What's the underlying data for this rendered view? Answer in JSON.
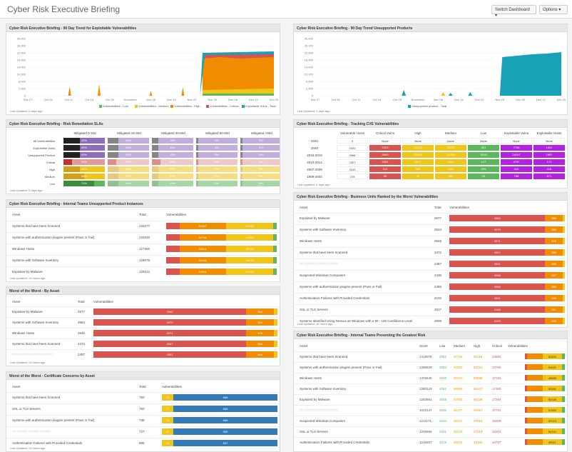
{
  "header": {
    "title": "Cyber Risk Executive Briefing",
    "switch_label": "Switch Dashboard ▾",
    "options_label": "Options ▾"
  },
  "footer_text": "Last Updated: 2 days ago",
  "footer_text_19h": "Last Updated: 19 hours ago",
  "p1": {
    "title": "Cyber Risk Executive Briefing - 90 Day Trend for Exploitable Vulnerabilities",
    "yticks": [
      "30,000",
      "26,000",
      "22,000",
      "18,000",
      "14,000",
      "10,000",
      "6,000",
      "2,000",
      "0"
    ],
    "xticks": [
      "Sep 27",
      "Oct 04",
      "Oct 11",
      "Oct 18",
      "Oct 25",
      "November",
      "Nov 08",
      "Nov 15",
      "Nov 22",
      "Nov 29",
      "Dec 06",
      "Dec 13",
      "Dec 20"
    ],
    "legend": [
      "Vulnerabilities - Low",
      "Vulnerabilities - Medium",
      "Vulnerabilities - High",
      "Vulnerabilities - Critical",
      "Exploitable Vulns - Total"
    ],
    "colors": [
      "#5cb85c",
      "#f0c419",
      "#f08c00",
      "#d9534f",
      "#17a2b8"
    ]
  },
  "p2": {
    "title": "Cyber Risk Executive Briefing - 90 Day Trend Unsupported Products",
    "yticks": [
      "30,000",
      "26,000",
      "22,000",
      "18,000",
      "14,000",
      "10,000",
      "6,000",
      "2,000",
      "0"
    ],
    "xticks": [
      "Sep 27",
      "Oct 04",
      "Oct 11",
      "Oct 18",
      "Oct 25",
      "November",
      "Nov 08",
      "Nov 15",
      "Nov 22",
      "Nov 29",
      "Dec 06",
      "Dec 13",
      "Dec 20"
    ],
    "legend": [
      "Unsupported product - Total"
    ]
  },
  "p3": {
    "title": "Cyber Risk Executive Briefing - Risk Remediation SLAs",
    "cols": [
      "Mitigated 0-15d",
      "Mitigated 15-30d",
      "Mitigated 30-60d",
      "Mitigated 60-90d",
      "Mitigated >90d"
    ],
    "rows": [
      {
        "label": "All Vulnerabilities",
        "vals": [
          "40%",
          "25%",
          "15%",
          "5%",
          "5%"
        ]
      },
      {
        "label": "Exploitable Vulns",
        "vals": [
          "40%",
          "25%",
          "15%",
          "5%",
          "5%"
        ]
      },
      {
        "label": "Unsupported Product",
        "vals": [
          "40%",
          "25%",
          "15%",
          "5%",
          "5%"
        ]
      },
      {
        "label": "Critical",
        "vals": [
          "20%",
          "20%",
          "20%",
          "5%",
          "5%"
        ]
      },
      {
        "label": "High",
        "vals": [
          "40%",
          "25%",
          "15%",
          "5%",
          "5%"
        ]
      },
      {
        "label": "Medium",
        "vals": [
          "50%",
          "25%",
          "15%",
          "5%",
          "5%"
        ]
      },
      {
        "label": "Low",
        "vals": [
          "74%",
          "25%",
          "15%",
          "5%",
          "5%"
        ]
      }
    ]
  },
  "p4": {
    "title": "Cyber Risk Executive Briefing - Tracking CVE Vulnerabilities",
    "cols": [
      "Vulnerable Hosts",
      "Critical Vulns",
      "High",
      "Medium",
      "Low",
      "Exploitable Vulns",
      "Exploitable Hosts"
    ],
    "rows": [
      {
        "label": "2021",
        "vals": [
          "0",
          "None",
          "None",
          "None",
          "None",
          "None",
          "None"
        ]
      },
      {
        "label": "2020",
        "vals": [
          "1022",
          "2323",
          "10213",
          "10271",
          "201",
          "7706",
          "1431"
        ]
      },
      {
        "label": "2016-2019",
        "vals": [
          "2984",
          "8840",
          "22108",
          "17428",
          "3018",
          "24297",
          "1987"
        ]
      },
      {
        "label": "2010-2014",
        "vals": [
          "2327",
          "2491",
          "2670",
          "3041",
          "197",
          "4797",
          "171"
        ]
      },
      {
        "label": "2007-2009",
        "vals": [
          "1143",
          "112",
          "356",
          "123",
          "229",
          "414",
          "118"
        ]
      },
      {
        "label": "1999-2004",
        "vals": [
          "729",
          "39",
          "70",
          "652",
          "23",
          "768",
          "571"
        ]
      }
    ]
  },
  "p5": {
    "title": "Cyber Risk Executive Briefing - Internal Teams Unsupported Product Instances",
    "cols": [
      "Asset",
      "Total",
      "Vulnerabilities"
    ],
    "rows": [
      {
        "asset": "Systems that have been Scanned",
        "total": "134277",
        "segs": [
          "",
          "54387",
          "44788"
        ]
      },
      {
        "asset": "Systems with authentication plugins present (Pass or Fail)",
        "total": "132033",
        "segs": [
          "",
          "54766",
          "44265"
        ]
      },
      {
        "asset": "Windows Hosts",
        "total": "127300",
        "segs": [
          "",
          "54341",
          "48754"
        ]
      },
      {
        "asset": "Systems with Software Inventory",
        "total": "126079",
        "segs": [
          "",
          "53138",
          "54070"
        ]
      },
      {
        "asset": "Exploited by Malware",
        "total": "125012",
        "segs": [
          "",
          "54001",
          "54129"
        ]
      }
    ]
  },
  "p6": {
    "title": "Worst of the Worst - By Asset",
    "cols": [
      "Asset",
      "Total",
      "Vulnerabilities"
    ],
    "rows": [
      {
        "asset": "Exploited by Malware",
        "total": "2577",
        "segs": [
          "2062",
          "384"
        ]
      },
      {
        "asset": "Systems with Software Inventory",
        "total": "2664",
        "segs": [
          "2679",
          "384"
        ]
      },
      {
        "asset": "Windows Hosts",
        "total": "2546",
        "segs": [
          "2071",
          "376"
        ]
      },
      {
        "asset": "Systems that have been Scanned",
        "total": "2472",
        "segs": [
          "2007",
          "384"
        ]
      },
      {
        "asset": "??? ?????? ?????? ??????",
        "total": "2487",
        "segs": [
          "2001",
          "384"
        ]
      }
    ]
  },
  "p7": {
    "title": "Worst of the Worst - Certificate Concerns by Asset",
    "cols": [
      "Asset",
      "Total",
      "Vulnerabilities"
    ],
    "rows": [
      {
        "asset": "Systems that have been Scanned",
        "total": "760",
        "segs": [
          "73",
          "668"
        ]
      },
      {
        "asset": "SSL or TLS Servers",
        "total": "750",
        "segs": [
          "77",
          "668"
        ]
      },
      {
        "asset": "Systems with authentication plugins present (Pass or Fail)",
        "total": "739",
        "segs": [
          "70",
          "668"
        ]
      },
      {
        "asset": "?? ?????? ?????? ??????",
        "total": "727",
        "segs": [
          "67",
          "650"
        ]
      },
      {
        "asset": "Authentication Failures with Provided Credentials",
        "total": "696",
        "segs": [
          "63",
          "637"
        ]
      }
    ]
  },
  "p8": {
    "title": "Cyber Risk Executive Briefing - Business Units Ranked by the Worst Vulnerabilities",
    "cols": [
      "Asset",
      "Total",
      "Vulnerabilities"
    ],
    "rows": [
      {
        "asset": "Exploited by Malware",
        "total": "2577",
        "segs": [
          "2062",
          "384"
        ]
      },
      {
        "asset": "Systems with Software Inventory",
        "total": "2524",
        "segs": [
          "2079",
          "384"
        ]
      },
      {
        "asset": "Windows Hosts",
        "total": "2546",
        "segs": [
          "2071",
          "376"
        ]
      },
      {
        "asset": "Systems that have been Scanned",
        "total": "2472",
        "segs": [
          "2007",
          "384"
        ]
      },
      {
        "asset": "?? ?????? ?????? ??????",
        "total": "2487",
        "segs": [
          "2001",
          "383"
        ]
      },
      {
        "asset": "Suspected Windows Computers",
        "total": "2436",
        "segs": [
          "2058",
          "347"
        ]
      },
      {
        "asset": "Systems with authentication plugins present (Pass or Fail)",
        "total": "2450",
        "segs": [
          "2066",
          "384"
        ]
      },
      {
        "asset": "Authentication Failures with Provided Credentials",
        "total": "2102",
        "segs": [
          "2001",
          "340"
        ]
      },
      {
        "asset": "SSL or TLS Servers",
        "total": "2017",
        "segs": [
          "2168",
          "311"
        ]
      },
      {
        "asset": "Systems Identified Using Nessus as Windows with a 90 - 100 Confidence Level",
        "total": "2009",
        "segs": [
          "2429",
          "329"
        ]
      }
    ]
  },
  "p9": {
    "title": "Cyber Risk Executive Briefing - Internal Teams Presenting the Greatest Risk",
    "cols": [
      "Asset",
      "Score",
      "Low",
      "Medium",
      "High",
      "Critical",
      "Vulnerabilities"
    ],
    "rows": [
      {
        "asset": "Systems that have been Scanned",
        "vals": [
          "1418078",
          "2082",
          "97468",
          "50118",
          "10684"
        ],
        "end": "51334"
      },
      {
        "asset": "Systems with authentication plugins present (Pass or Fail)",
        "vals": [
          "1388629",
          "2063",
          "93360",
          "52421",
          "10789"
        ],
        "end": "51021"
      },
      {
        "asset": "Windows Hosts",
        "vals": [
          "1376646",
          "2028",
          "89150",
          "69059",
          "17194"
        ],
        "end": "49655"
      },
      {
        "asset": "Systems with Software Inventory",
        "vals": [
          "1360123",
          "2061",
          "88098",
          "50147",
          "17160"
        ],
        "end": "50341"
      },
      {
        "asset": "Exploited by Malware",
        "vals": [
          "1283881",
          "2058",
          "87508",
          "50138",
          "17264"
        ],
        "end": "50128"
      },
      {
        "asset": "?? ?????? ?????? ??????",
        "vals": [
          "1022147",
          "2036",
          "81107",
          "40027",
          "17721"
        ],
        "end": "51300"
      },
      {
        "asset": "Suspected Windows Computers",
        "vals": [
          "1211171",
          "2034",
          "85012",
          "47016",
          "16409"
        ],
        "end": "37213"
      },
      {
        "asset": "SSL or TLS Servers",
        "vals": [
          "1236666",
          "2031",
          "82228",
          "47018",
          "16201"
        ],
        "end": "50110"
      },
      {
        "asset": "Authentication Failures with Provided Credentials",
        "vals": [
          "1218207",
          "2019",
          "80015",
          "49160",
          "16787"
        ],
        "end": "49511"
      }
    ]
  }
}
